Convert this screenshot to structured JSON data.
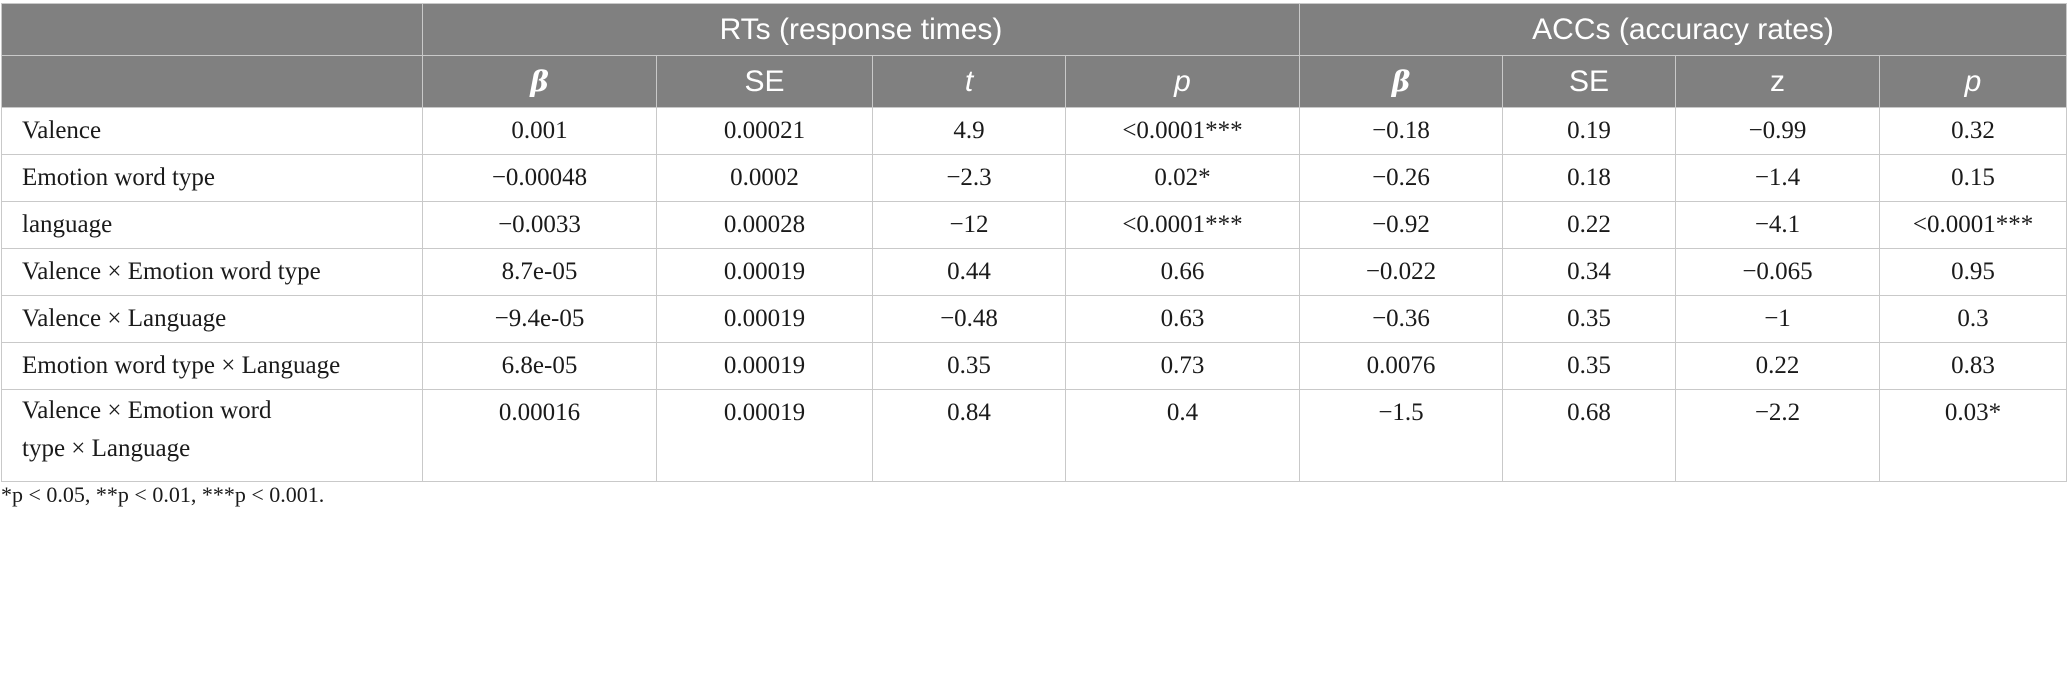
{
  "header": {
    "group_rts": "RTs (response times)",
    "group_accs": "ACCs (accuracy rates)",
    "columns": [
      "β",
      "SE",
      "t",
      "p",
      "β",
      "SE",
      "z",
      "p"
    ]
  },
  "rows": [
    {
      "label": "Valence",
      "cells": [
        "0.001",
        "0.00021",
        "4.9",
        "<0.0001***",
        "−0.18",
        "0.19",
        "−0.99",
        "0.32"
      ]
    },
    {
      "label": "Emotion word type",
      "cells": [
        "−0.00048",
        "0.0002",
        "−2.3",
        "0.02*",
        "−0.26",
        "0.18",
        "−1.4",
        "0.15"
      ]
    },
    {
      "label": "language",
      "cells": [
        "−0.0033",
        "0.00028",
        "−12",
        "<0.0001***",
        "−0.92",
        "0.22",
        "−4.1",
        "<0.0001***"
      ]
    },
    {
      "label": "Valence × Emotion word type",
      "cells": [
        "8.7e-05",
        "0.00019",
        "0.44",
        "0.66",
        "−0.022",
        "0.34",
        "−0.065",
        "0.95"
      ]
    },
    {
      "label": "Valence × Language",
      "cells": [
        "−9.4e-05",
        "0.00019",
        "−0.48",
        "0.63",
        "−0.36",
        "0.35",
        "−1",
        "0.3"
      ]
    },
    {
      "label": "Emotion word type × Language",
      "cells": [
        "6.8e-05",
        "0.00019",
        "0.35",
        "0.73",
        "0.0076",
        "0.35",
        "0.22",
        "0.83"
      ]
    },
    {
      "label_line1": "Valence × Emotion word",
      "label_line2": "type × Language",
      "cells": [
        "0.00016",
        "0.00019",
        "0.84",
        "0.4",
        "−1.5",
        "0.68",
        "−2.2",
        "0.03*"
      ]
    }
  ],
  "footnote": "*p < 0.05, **p < 0.01, ***p < 0.001.",
  "colors": {
    "header_bg": "#808080",
    "header_text": "#ffffff",
    "grid": "#c9c9c9"
  }
}
